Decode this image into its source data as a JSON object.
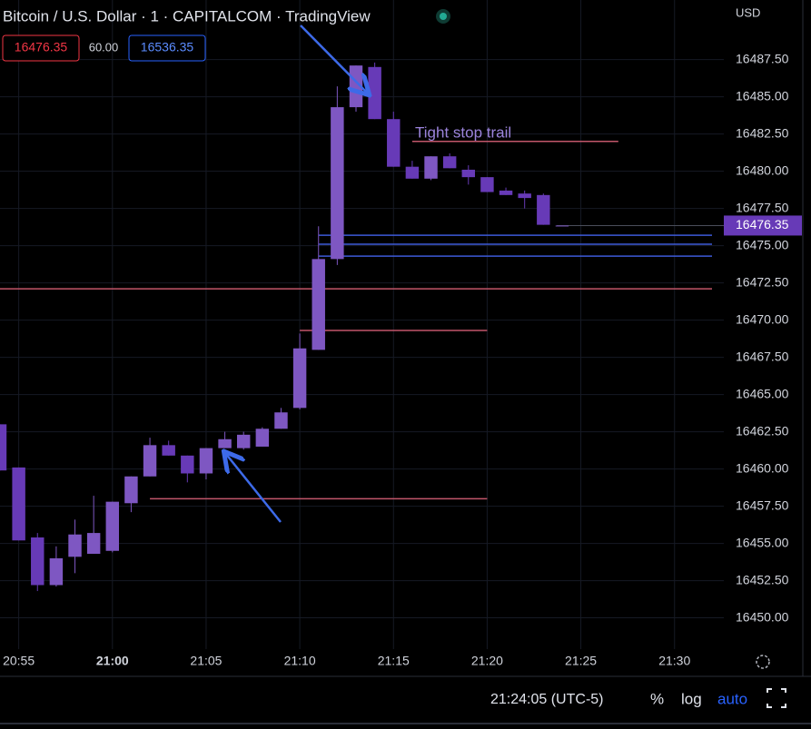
{
  "chart_data": {
    "type": "candlestick",
    "title": "Bitcoin / U.S. Dollar · 1 · CAPITALCOM · TradingView",
    "bid": 16476.35,
    "spread": "60.00",
    "ask": 16536.35,
    "currency": "USD",
    "last_price": 16476.35,
    "time_display": "21:24:05 (UTC-5)",
    "scale_buttons": [
      "%",
      "log",
      "auto"
    ],
    "annotation": "Tight stop trail",
    "up_color": "#7e57c2",
    "down_color": "#673ab7",
    "x": [
      "20:54",
      "20:55",
      "20:56",
      "20:57",
      "20:58",
      "20:59",
      "21:00",
      "21:01",
      "21:02",
      "21:03",
      "21:04",
      "21:05",
      "21:06",
      "21:07",
      "21:08",
      "21:09",
      "21:10",
      "21:11",
      "21:12",
      "21:13",
      "21:14",
      "21:15",
      "21:16",
      "21:17",
      "21:18",
      "21:19",
      "21:20",
      "21:21",
      "21:22",
      "21:23",
      "21:24"
    ],
    "open": [
      16463.0,
      16460.1,
      16455.4,
      16452.2,
      16454.1,
      16454.3,
      16454.5,
      16457.7,
      16459.5,
      16461.6,
      16460.9,
      16459.7,
      16461.4,
      16461.4,
      16461.5,
      16462.7,
      16464.1,
      16468.0,
      16474.1,
      16484.3,
      16487.0,
      16483.5,
      16480.3,
      16479.5,
      16481.0,
      16480.1,
      16479.6,
      16478.7,
      16478.5,
      16478.4,
      16476.35
    ],
    "high": [
      16463.0,
      16460.1,
      16455.7,
      16454.8,
      16456.6,
      16458.2,
      16457.8,
      16459.5,
      16462.1,
      16461.9,
      16460.9,
      16461.4,
      16462.5,
      16462.5,
      16462.8,
      16464.1,
      16469.1,
      16476.3,
      16485.7,
      16487.1,
      16487.3,
      16484.0,
      16480.7,
      16481.0,
      16481.2,
      16480.4,
      16479.6,
      16478.9,
      16478.7,
      16478.5,
      16476.35
    ],
    "low": [
      16459.9,
      16455.2,
      16451.8,
      16452.1,
      16453.0,
      16454.3,
      16454.4,
      16457.1,
      16459.5,
      16460.9,
      16459.1,
      16459.3,
      16461.4,
      16461.3,
      16461.5,
      16462.7,
      16464.0,
      16468.0,
      16473.7,
      16484.0,
      16483.5,
      16480.3,
      16479.5,
      16479.4,
      16480.2,
      16479.1,
      16478.6,
      16478.4,
      16477.5,
      16476.4,
      16476.35
    ],
    "close": [
      16459.9,
      16455.2,
      16452.2,
      16454.0,
      16455.6,
      16455.7,
      16457.8,
      16459.5,
      16461.6,
      16460.9,
      16459.7,
      16461.4,
      16462.0,
      16462.3,
      16462.7,
      16463.8,
      16468.1,
      16474.1,
      16484.3,
      16487.1,
      16483.5,
      16480.3,
      16479.5,
      16481.0,
      16480.2,
      16479.6,
      16478.6,
      16478.4,
      16478.2,
      16476.4,
      16476.35
    ],
    "xlim": [
      "20:54",
      "21:32"
    ],
    "xticks": [
      "20:55",
      "21:00",
      "21:05",
      "21:10",
      "21:15",
      "21:20",
      "21:25",
      "21:30"
    ],
    "ylim": [
      16447.9,
      16491.5
    ],
    "yticks": [
      {
        "value": 16450,
        "label": "16450.00"
      },
      {
        "value": 16452.5,
        "label": "16452.50"
      },
      {
        "value": 16455,
        "label": "16455.00"
      },
      {
        "value": 16457.5,
        "label": "16457.50"
      },
      {
        "value": 16460,
        "label": "16460.00"
      },
      {
        "value": 16462.5,
        "label": "16462.50"
      },
      {
        "value": 16465,
        "label": "16465.00"
      },
      {
        "value": 16467.5,
        "label": "16467.50"
      },
      {
        "value": 16470,
        "label": "16470.00"
      },
      {
        "value": 16472.5,
        "label": "16472.50"
      },
      {
        "value": 16475,
        "label": "16475.00"
      },
      {
        "value": 16477.5,
        "label": "16477.50"
      },
      {
        "value": 16480,
        "label": "16480.00"
      },
      {
        "value": 16482.5,
        "label": "16482.50"
      },
      {
        "value": 16485,
        "label": "16485.00"
      },
      {
        "value": 16487.5,
        "label": "16487.50"
      }
    ],
    "grid": true,
    "levels": [
      {
        "value": 16482.0,
        "color": "#c2566a",
        "from": "21:16",
        "to": "21:27"
      },
      {
        "value": 16472.1,
        "color": "#c2566a",
        "from": "20:54",
        "to": "21:32"
      },
      {
        "value": 16469.3,
        "color": "#c2566a",
        "from": "21:10",
        "to": "21:20"
      },
      {
        "value": 16458.0,
        "color": "#c2566a",
        "from": "21:02",
        "to": "21:20"
      },
      {
        "value": 16475.7,
        "color": "#3d5ad8",
        "from": "21:11",
        "to": "21:32"
      },
      {
        "value": 16475.1,
        "color": "#3d5ad8",
        "from": "21:11",
        "to": "21:32"
      },
      {
        "value": 16474.3,
        "color": "#3d5ad8",
        "from": "21:11",
        "to": "21:32"
      }
    ]
  }
}
